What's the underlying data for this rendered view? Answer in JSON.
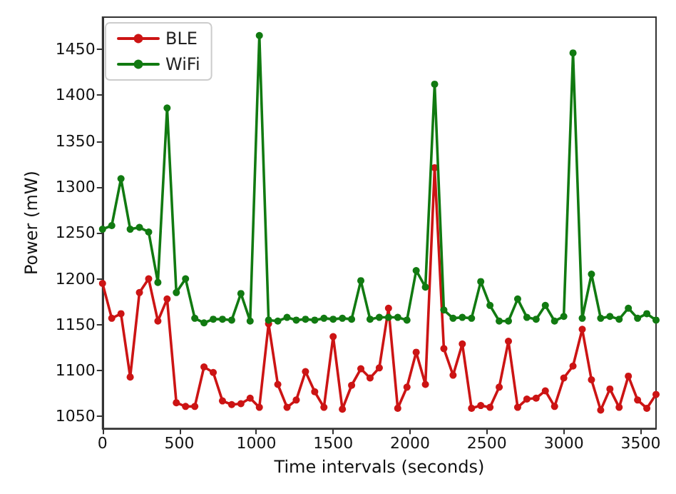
{
  "chart_data": {
    "type": "line",
    "xlabel": "Time intervals (seconds)",
    "ylabel": "Power (mW)",
    "x": [
      0,
      60,
      120,
      180,
      240,
      300,
      360,
      420,
      480,
      540,
      600,
      660,
      720,
      780,
      840,
      900,
      960,
      1020,
      1080,
      1140,
      1200,
      1260,
      1320,
      1380,
      1440,
      1500,
      1560,
      1620,
      1680,
      1740,
      1800,
      1860,
      1920,
      1980,
      2040,
      2100,
      2160,
      2220,
      2280,
      2340,
      2400,
      2460,
      2520,
      2580,
      2640,
      2700,
      2760,
      2820,
      2880,
      2940,
      3000,
      3060,
      3120,
      3180,
      3240,
      3300,
      3360,
      3420,
      3480,
      3540,
      3600
    ],
    "series": [
      {
        "name": "BLE",
        "color": "#cc1414",
        "values": [
          1195,
          1157,
          1162,
          1093,
          1185,
          1200,
          1154,
          1178,
          1065,
          1061,
          1061,
          1104,
          1098,
          1067,
          1063,
          1064,
          1070,
          1060,
          1151,
          1085,
          1060,
          1068,
          1099,
          1077,
          1060,
          1137,
          1058,
          1084,
          1102,
          1092,
          1103,
          1168,
          1059,
          1082,
          1120,
          1085,
          1321,
          1124,
          1095,
          1129,
          1059,
          1062,
          1060,
          1082,
          1132,
          1060,
          1069,
          1070,
          1078,
          1061,
          1092,
          1105,
          1145,
          1090,
          1057,
          1080,
          1060,
          1094,
          1068,
          1059,
          1074
        ]
      },
      {
        "name": "WiFi",
        "color": "#117a11",
        "values": [
          1254,
          1258,
          1309,
          1254,
          1256,
          1251,
          1196,
          1386,
          1185,
          1200,
          1157,
          1152,
          1156,
          1156,
          1155,
          1184,
          1154,
          1465,
          1155,
          1154,
          1158,
          1155,
          1156,
          1155,
          1157,
          1156,
          1157,
          1156,
          1198,
          1156,
          1158,
          1158,
          1158,
          1155,
          1209,
          1191,
          1412,
          1166,
          1157,
          1158,
          1157,
          1197,
          1171,
          1154,
          1154,
          1178,
          1158,
          1156,
          1171,
          1154,
          1159,
          1446,
          1157,
          1205,
          1157,
          1159,
          1156,
          1168,
          1157,
          1162,
          1155
        ]
      }
    ],
    "xlim": [
      0,
      3600
    ],
    "xticks": [
      0,
      500,
      1000,
      1500,
      2000,
      2500,
      3000,
      3500
    ],
    "ylim": [
      1037,
      1485
    ],
    "yticks": [
      1050,
      1100,
      1150,
      1200,
      1250,
      1300,
      1350,
      1400,
      1450
    ],
    "grid": false,
    "legend": "top left",
    "marker": "circle",
    "line_style": "solid"
  }
}
